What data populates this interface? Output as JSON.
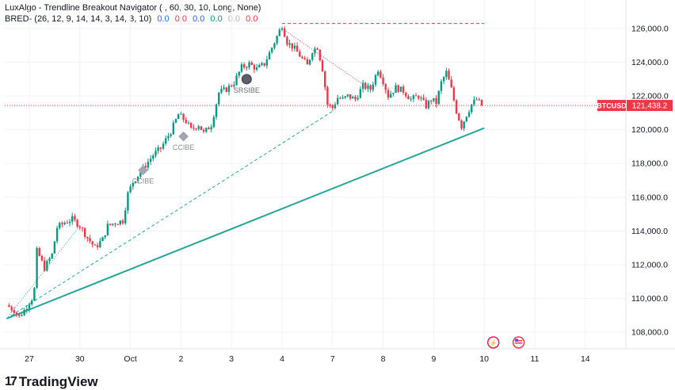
{
  "indicator_title": "LuxAlgo - Trendline Breakout Navigator ( , 60, 30, 10, Long, None)",
  "bred": {
    "label": "BRED- (26, 12, 9, 14, 14, 3, 14, 3, 10)",
    "values": [
      "0.0",
      "0.0",
      "0.0",
      "0.0",
      "0.0",
      "0.0"
    ],
    "colors": [
      "#2962ff",
      "#f23645",
      "#2962ff",
      "#089981",
      "#b2b5be",
      "#f23645"
    ]
  },
  "brand": "TradingView",
  "colors": {
    "up": "#089981",
    "down": "#f23645",
    "trend": "#26a69a",
    "price_tag": "#f23645",
    "grid": "#f0f3fa"
  },
  "chart_data": {
    "type": "candlestick",
    "symbol_tag": "BTCUSD",
    "last_price": 121438.2,
    "last_price_label": "121,438.2",
    "y_ticks": [
      "108,000.0",
      "110,000.0",
      "112,000.0",
      "114,000.0",
      "116,000.0",
      "118,000.0",
      "120,000.0",
      "122,000.0",
      "124,000.0",
      "126,000.0"
    ],
    "y_tick_values": [
      108000,
      110000,
      112000,
      114000,
      116000,
      118000,
      120000,
      122000,
      124000,
      126000
    ],
    "x_ticks": [
      "27",
      "30",
      "Oct",
      "2",
      "3",
      "4",
      "7",
      "8",
      "9",
      "10",
      "11",
      "14"
    ],
    "x_tick_index": [
      0,
      1,
      2,
      3,
      4,
      5,
      6,
      7,
      8,
      9,
      10,
      11
    ],
    "close_path": [
      [
        -0.45,
        109600
      ],
      [
        -0.3,
        109300
      ],
      [
        -0.2,
        108900
      ],
      [
        -0.1,
        109300
      ],
      [
        0.0,
        109800
      ],
      [
        0.08,
        110100
      ],
      [
        0.12,
        111000
      ],
      [
        0.15,
        112800
      ],
      [
        0.2,
        112500
      ],
      [
        0.3,
        111800
      ],
      [
        0.45,
        112600
      ],
      [
        0.55,
        114200
      ],
      [
        0.7,
        114500
      ],
      [
        0.85,
        114700
      ],
      [
        1.0,
        114300
      ],
      [
        1.15,
        113600
      ],
      [
        1.3,
        113000
      ],
      [
        1.45,
        113500
      ],
      [
        1.55,
        114300
      ],
      [
        1.7,
        114500
      ],
      [
        1.85,
        114600
      ],
      [
        1.95,
        116200
      ],
      [
        2.05,
        116900
      ],
      [
        2.2,
        117500
      ],
      [
        2.35,
        118100
      ],
      [
        2.45,
        118500
      ],
      [
        2.6,
        118900
      ],
      [
        2.8,
        119900
      ],
      [
        2.95,
        120900
      ],
      [
        3.1,
        120500
      ],
      [
        3.2,
        120000
      ],
      [
        3.35,
        120300
      ],
      [
        3.45,
        119800
      ],
      [
        3.6,
        120300
      ],
      [
        3.75,
        122200
      ],
      [
        3.9,
        122400
      ],
      [
        4.05,
        122800
      ],
      [
        4.2,
        123700
      ],
      [
        4.35,
        123900
      ],
      [
        4.5,
        123600
      ],
      [
        4.65,
        123900
      ],
      [
        4.85,
        125200
      ],
      [
        5.0,
        126200
      ],
      [
        5.1,
        125200
      ],
      [
        5.25,
        124800
      ],
      [
        5.4,
        124200
      ],
      [
        5.5,
        123800
      ],
      [
        5.6,
        124700
      ],
      [
        5.7,
        124900
      ],
      [
        5.8,
        123600
      ],
      [
        5.9,
        121500
      ],
      [
        6.0,
        121300
      ],
      [
        6.1,
        121900
      ],
      [
        6.2,
        121800
      ],
      [
        6.3,
        122000
      ],
      [
        6.45,
        121800
      ],
      [
        6.6,
        122600
      ],
      [
        6.75,
        122400
      ],
      [
        6.9,
        123600
      ],
      [
        7.0,
        122900
      ],
      [
        7.1,
        122000
      ],
      [
        7.25,
        122500
      ],
      [
        7.4,
        122300
      ],
      [
        7.55,
        121800
      ],
      [
        7.7,
        122000
      ],
      [
        7.85,
        121400
      ],
      [
        7.95,
        121800
      ],
      [
        8.05,
        121600
      ],
      [
        8.15,
        122800
      ],
      [
        8.25,
        123400
      ],
      [
        8.35,
        122400
      ],
      [
        8.45,
        121100
      ],
      [
        8.55,
        120200
      ],
      [
        8.65,
        120900
      ],
      [
        8.75,
        121500
      ],
      [
        8.85,
        121800
      ],
      [
        8.95,
        121438.2
      ]
    ],
    "trendlines": [
      {
        "kind": "solid",
        "from": [
          -0.45,
          108800
        ],
        "to": [
          9.0,
          120100
        ]
      },
      {
        "kind": "dashed",
        "from": [
          -0.45,
          108800
        ],
        "to": [
          6.0,
          121100
        ]
      },
      {
        "kind": "dotted",
        "from": [
          -0.45,
          108800
        ],
        "to": [
          1.0,
          114300
        ]
      },
      {
        "kind": "red-dotted",
        "from": [
          5.0,
          126000
        ],
        "to": [
          6.6,
          122700
        ]
      },
      {
        "kind": "red-dashed",
        "from": [
          5.0,
          126300
        ],
        "to": [
          9.0,
          126300
        ]
      }
    ],
    "markers": [
      {
        "label": "SRSIBE",
        "shape": "circle",
        "x": 4.3,
        "y": 123000
      },
      {
        "label": "CCIBE",
        "shape": "diamond",
        "x": 3.05,
        "y": 119600
      },
      {
        "label": "CCIBE",
        "shape": "diamond",
        "x": 2.25,
        "y": 117600
      }
    ],
    "grid": true
  }
}
